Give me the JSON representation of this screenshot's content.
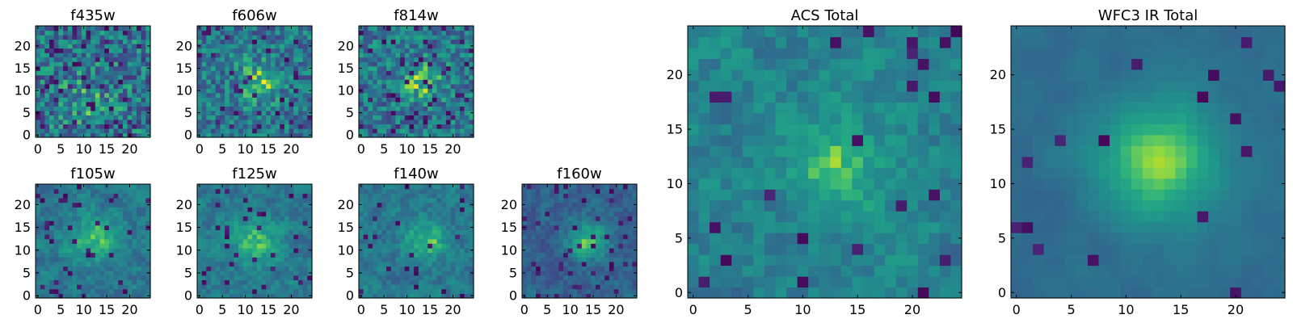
{
  "chart_data": [
    {
      "type": "heatmap",
      "title": "f435w",
      "xlim": [
        0,
        25
      ],
      "ylim": [
        0,
        25
      ],
      "xticks": [
        0,
        5,
        10,
        15,
        20
      ],
      "yticks": [
        0,
        5,
        10,
        15,
        20
      ],
      "xtick_labels": [
        "0",
        "5",
        "10",
        "15",
        "20"
      ],
      "ytick_labels": [
        "0",
        "5",
        "10",
        "15",
        "20"
      ],
      "colormap": "viridis",
      "grid_size": [
        25,
        25
      ],
      "source": {
        "x0": 11,
        "y0": 8,
        "sigma": 4,
        "amp": 0.15,
        "noise": 0.6,
        "base": 0.48,
        "spike": 0.08
      }
    },
    {
      "type": "heatmap",
      "title": "f606w",
      "xlim": [
        0,
        25
      ],
      "ylim": [
        0,
        25
      ],
      "xticks": [
        0,
        5,
        10,
        15,
        20
      ],
      "yticks": [
        0,
        5,
        10,
        15,
        20
      ],
      "xtick_labels": [
        "0",
        "5",
        "10",
        "15",
        "20"
      ],
      "ytick_labels": [
        "0",
        "5",
        "10",
        "15",
        "20"
      ],
      "colormap": "viridis",
      "grid_size": [
        25,
        25
      ],
      "source": {
        "x0": 13,
        "y0": 12,
        "sigma": 3,
        "amp": 0.3,
        "noise": 0.5,
        "base": 0.5,
        "spike": 0.06
      }
    },
    {
      "type": "heatmap",
      "title": "f814w",
      "xlim": [
        0,
        25
      ],
      "ylim": [
        0,
        25
      ],
      "xticks": [
        0,
        5,
        10,
        15,
        20
      ],
      "yticks": [
        0,
        5,
        10,
        15,
        20
      ],
      "xtick_labels": [
        "0",
        "5",
        "10",
        "15",
        "20"
      ],
      "ytick_labels": [
        "0",
        "5",
        "10",
        "15",
        "20"
      ],
      "colormap": "viridis",
      "grid_size": [
        25,
        25
      ],
      "source": {
        "x0": 13,
        "y0": 12,
        "sigma": 3,
        "amp": 0.3,
        "noise": 0.5,
        "base": 0.5,
        "spike": 0.06
      }
    },
    {
      "type": "heatmap",
      "title": "f105w",
      "xlim": [
        0,
        25
      ],
      "ylim": [
        0,
        25
      ],
      "xticks": [
        0,
        5,
        10,
        15,
        20
      ],
      "yticks": [
        0,
        5,
        10,
        15,
        20
      ],
      "xtick_labels": [
        "0",
        "5",
        "10",
        "15",
        "20"
      ],
      "ytick_labels": [
        "0",
        "5",
        "10",
        "15",
        "20"
      ],
      "colormap": "viridis",
      "grid_size": [
        25,
        25
      ],
      "source": {
        "x0": 12,
        "y0": 12,
        "sigma": 4,
        "amp": 0.3,
        "noise": 0.4,
        "base": 0.5,
        "spike": 0.05
      }
    },
    {
      "type": "heatmap",
      "title": "f125w",
      "xlim": [
        0,
        25
      ],
      "ylim": [
        0,
        25
      ],
      "xticks": [
        0,
        5,
        10,
        15,
        20
      ],
      "yticks": [
        0,
        5,
        10,
        15,
        20
      ],
      "xtick_labels": [
        "0",
        "5",
        "10",
        "15",
        "20"
      ],
      "ytick_labels": [
        "0",
        "5",
        "10",
        "15",
        "20"
      ],
      "colormap": "viridis",
      "grid_size": [
        25,
        25
      ],
      "source": {
        "x0": 12,
        "y0": 12,
        "sigma": 4,
        "amp": 0.3,
        "noise": 0.4,
        "base": 0.5,
        "spike": 0.05
      }
    },
    {
      "type": "heatmap",
      "title": "f140w",
      "xlim": [
        0,
        25
      ],
      "ylim": [
        0,
        25
      ],
      "xticks": [
        0,
        5,
        10,
        15,
        20
      ],
      "yticks": [
        0,
        5,
        10,
        15,
        20
      ],
      "xtick_labels": [
        "0",
        "5",
        "10",
        "15",
        "20"
      ],
      "ytick_labels": [
        "0",
        "5",
        "10",
        "15",
        "20"
      ],
      "colormap": "viridis",
      "grid_size": [
        25,
        25
      ],
      "source": {
        "x0": 14,
        "y0": 12,
        "sigma": 3,
        "amp": 0.35,
        "noise": 0.4,
        "base": 0.5,
        "spike": 0.04
      }
    },
    {
      "type": "heatmap",
      "title": "f160w",
      "xlim": [
        0,
        25
      ],
      "ylim": [
        0,
        25
      ],
      "xticks": [
        0,
        5,
        10,
        15,
        20
      ],
      "yticks": [
        0,
        5,
        10,
        15,
        20
      ],
      "xtick_labels": [
        "0",
        "5",
        "10",
        "15",
        "20"
      ],
      "ytick_labels": [
        "0",
        "5",
        "10",
        "15",
        "20"
      ],
      "colormap": "viridis",
      "grid_size": [
        25,
        25
      ],
      "source": {
        "x0": 14,
        "y0": 12,
        "sigma": 3,
        "amp": 0.45,
        "noise": 0.35,
        "base": 0.38,
        "spike": 0.06
      }
    },
    {
      "type": "heatmap",
      "title": "ACS Total",
      "xlim": [
        0,
        25
      ],
      "ylim": [
        0,
        25
      ],
      "xticks": [
        0,
        5,
        10,
        15,
        20
      ],
      "yticks": [
        0,
        5,
        10,
        15,
        20
      ],
      "xtick_labels": [
        "0",
        "5",
        "10",
        "15",
        "20"
      ],
      "ytick_labels": [
        "0",
        "5",
        "10",
        "15",
        "20"
      ],
      "colormap": "viridis",
      "grid_size": [
        25,
        25
      ],
      "source": {
        "x0": 13,
        "y0": 12,
        "sigma": 3,
        "amp": 0.3,
        "noise": 0.4,
        "base": 0.55,
        "spike": 0.04
      }
    },
    {
      "type": "heatmap",
      "title": "WFC3 IR Total",
      "xlim": [
        0,
        25
      ],
      "ylim": [
        0,
        25
      ],
      "xticks": [
        0,
        5,
        10,
        15,
        20
      ],
      "yticks": [
        0,
        5,
        10,
        15,
        20
      ],
      "xtick_labels": [
        "0",
        "5",
        "10",
        "15",
        "20"
      ],
      "ytick_labels": [
        "0",
        "5",
        "10",
        "15",
        "20"
      ],
      "colormap": "viridis",
      "grid_size": [
        25,
        25
      ],
      "source": {
        "x0": 13,
        "y0": 12,
        "sigma": 4,
        "amp": 0.45,
        "noise": 0.2,
        "base": 0.45,
        "spike": 0.03
      }
    }
  ]
}
